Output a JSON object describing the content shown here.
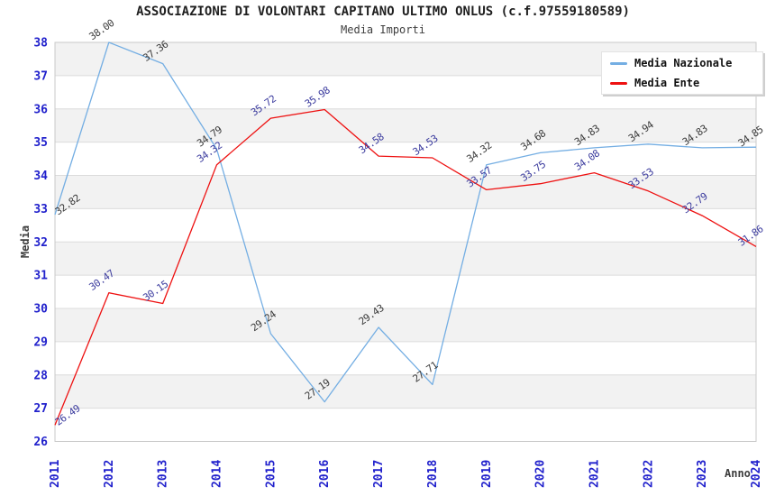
{
  "header": {
    "title": "ASSOCIAZIONE DI VOLONTARI CAPITANO ULTIMO ONLUS (c.f.97559180589)",
    "subtitle": "Media Importi"
  },
  "colors": {
    "tick_label": "#2121cc",
    "grid_line": "#dcdcdc",
    "plot_border": "#c8c8c8",
    "band_fill": "#f2f2f2",
    "title_text": "#1f1f1f",
    "axis_title_text": "#3d3d3d"
  },
  "chart_data": {
    "type": "line",
    "title": "ASSOCIAZIONE DI VOLONTARI CAPITANO ULTIMO ONLUS (c.f.97559180589)",
    "subtitle": "Media Importi",
    "xlabel": "Anno",
    "ylabel": "Media",
    "x": [
      "2011",
      "2012",
      "2013",
      "2014",
      "2015",
      "2016",
      "2017",
      "2018",
      "2019",
      "2020",
      "2021",
      "2022",
      "2023",
      "2024"
    ],
    "ylim": [
      26,
      38
    ],
    "ytick_step": 1,
    "grid": "horizontal gridlines at every integer, no vertical gridlines",
    "background_bands": "alternating 1-unit gray/white horizontal rows, gray on 27-28, 29-30, 31-32, 33-34, 35-36, 37-38",
    "legend_position": "top-right, white box with shadow",
    "point_labels": "each point labeled with value, rotated ~35 degrees",
    "series": [
      {
        "name": "Media Nazionale",
        "color": "#74aee3",
        "label_color": "#3a3a3a",
        "values": [
          32.82,
          38.0,
          37.36,
          34.79,
          29.24,
          27.19,
          29.43,
          27.71,
          34.32,
          34.68,
          34.83,
          34.94,
          34.83,
          34.85
        ]
      },
      {
        "name": "Media Ente",
        "color": "#ee1111",
        "label_color": "#3b3b9e",
        "values": [
          26.49,
          30.47,
          30.15,
          34.32,
          35.72,
          35.98,
          34.58,
          34.53,
          33.57,
          33.75,
          34.08,
          33.53,
          32.79,
          31.86
        ]
      }
    ]
  }
}
